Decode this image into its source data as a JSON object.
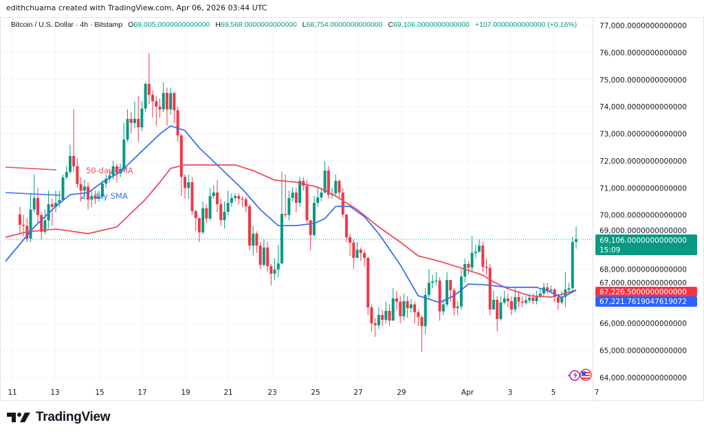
{
  "header": {
    "credit": "edithchuama created with TradingView.com, Apr 06, 2026 03:44 UTC"
  },
  "legend": {
    "symbol": "Bitcoin / U.S. Dollar · 4h · Bitstamp",
    "open": "69,005.0000000000000",
    "high": "69,568.0000000000000",
    "low": "68,754.0000000000000",
    "close": "69,106.0000000000000",
    "change": "+107.0000000000000 (+0.16%)",
    "o_label": "O",
    "h_label": "H",
    "l_label": "L",
    "c_label": "C"
  },
  "price_labels": {
    "last": "69,106.0000000000000",
    "countdown": "15:09",
    "sma50": "67,226.5000000000000",
    "sma21": "67,221.7619047619072"
  },
  "logo": {
    "text": "TradingView"
  },
  "colors": {
    "up": "#089981",
    "down": "#f23645",
    "sma50": "#ef4a5b",
    "sma21": "#3b6ef0",
    "grid": "#f0f3fa"
  },
  "chart_data": {
    "type": "candlestick",
    "interval": "4h",
    "ylim": [
      64000,
      77000
    ],
    "grid": true,
    "y_ticks": [
      "77,000.0000000000000",
      "76,000.0000000000000",
      "75,000.0000000000000",
      "74,000.0000000000000",
      "73,000.0000000000000",
      "72,000.0000000000000",
      "71,000.0000000000000",
      "70,000.0000000000000",
      "69,000.0000000000000",
      "68,000.0000000000000",
      "67,000.0000000000000",
      "66,000.0000000000000",
      "65,000.0000000000000",
      "64,000.0000000000000"
    ],
    "y_tick_values": [
      77000,
      76000,
      75000,
      74000,
      73000,
      72000,
      71000,
      70000,
      69000,
      68000,
      67000,
      66000,
      65000,
      64000
    ],
    "x_ticks": [
      "11",
      "13",
      "15",
      "17",
      "19",
      "21",
      "23",
      "25",
      "27",
      "29",
      "Apr",
      "3",
      "5",
      "7"
    ],
    "candles": [
      [
        70020,
        70300,
        69300,
        69640
      ],
      [
        69640,
        70000,
        69200,
        69600
      ],
      [
        69600,
        69900,
        69000,
        69130
      ],
      [
        69130,
        70800,
        69000,
        70200
      ],
      [
        70200,
        71500,
        70100,
        70630
      ],
      [
        70630,
        71000,
        69700,
        70000
      ],
      [
        70000,
        70100,
        69100,
        69380
      ],
      [
        69380,
        70200,
        69300,
        69800
      ],
      [
        69800,
        70900,
        69500,
        70400
      ],
      [
        70400,
        70600,
        69600,
        70300
      ],
      [
        70300,
        70900,
        70100,
        70450
      ],
      [
        70450,
        70900,
        70300,
        70550
      ],
      [
        70550,
        71500,
        70500,
        71390
      ],
      [
        71390,
        71800,
        71300,
        71590
      ],
      [
        71590,
        72600,
        71500,
        72180
      ],
      [
        72180,
        73900,
        71600,
        71800
      ],
      [
        71800,
        72100,
        71000,
        71140
      ],
      [
        71140,
        71400,
        70500,
        70900
      ],
      [
        70900,
        71300,
        70600,
        71050
      ],
      [
        71050,
        71200,
        70200,
        70570
      ],
      [
        70570,
        70900,
        70300,
        70700
      ],
      [
        70700,
        70900,
        70400,
        70600
      ],
      [
        70600,
        70900,
        70500,
        70680
      ],
      [
        70680,
        71300,
        70600,
        71160
      ],
      [
        71160,
        71500,
        71000,
        71340
      ],
      [
        71340,
        71700,
        71200,
        71460
      ],
      [
        71460,
        72000,
        71300,
        71800
      ],
      [
        71800,
        71900,
        71200,
        71550
      ],
      [
        71550,
        71900,
        71400,
        71700
      ],
      [
        71700,
        73400,
        71600,
        72785
      ],
      [
        72785,
        73900,
        72700,
        73550
      ],
      [
        73550,
        73800,
        73000,
        73400
      ],
      [
        73400,
        74200,
        73200,
        73550
      ],
      [
        73550,
        74400,
        72700,
        73240
      ],
      [
        73240,
        74200,
        73100,
        73930
      ],
      [
        73930,
        74900,
        73800,
        74840
      ],
      [
        74840,
        75990,
        74100,
        74440
      ],
      [
        74440,
        74600,
        73600,
        74200
      ],
      [
        74200,
        74400,
        73300,
        74000
      ],
      [
        74000,
        74300,
        73600,
        73900
      ],
      [
        73900,
        74900,
        73800,
        74510
      ],
      [
        74510,
        74700,
        73300,
        73900
      ],
      [
        73900,
        74700,
        73700,
        74500
      ],
      [
        74500,
        74550,
        73400,
        73870
      ],
      [
        73870,
        74000,
        72700,
        72940
      ],
      [
        72940,
        73000,
        70700,
        71410
      ],
      [
        71410,
        71500,
        70600,
        71000
      ],
      [
        71000,
        71500,
        70600,
        71210
      ],
      [
        71210,
        71400,
        70000,
        70145
      ],
      [
        70145,
        70200,
        69400,
        69890
      ],
      [
        69890,
        69900,
        69000,
        69360
      ],
      [
        69360,
        70500,
        69300,
        70250
      ],
      [
        70250,
        70400,
        69700,
        69870
      ],
      [
        69870,
        71000,
        69800,
        70700
      ],
      [
        70700,
        71100,
        70600,
        70830
      ],
      [
        70830,
        71300,
        70100,
        70400
      ],
      [
        70400,
        70600,
        69600,
        69810
      ],
      [
        69810,
        70500,
        69500,
        70120
      ],
      [
        70120,
        70900,
        70000,
        70450
      ],
      [
        70450,
        70800,
        70300,
        70630
      ],
      [
        70630,
        70800,
        70500,
        70700
      ],
      [
        70700,
        70800,
        70400,
        70600
      ],
      [
        70600,
        70700,
        70300,
        70580
      ],
      [
        70580,
        70650,
        70100,
        70320
      ],
      [
        70320,
        70400,
        68700,
        68870
      ],
      [
        68870,
        69600,
        68500,
        69310
      ],
      [
        69310,
        69400,
        68600,
        68870
      ],
      [
        68870,
        69000,
        68000,
        68160
      ],
      [
        68160,
        69100,
        68100,
        68800
      ],
      [
        68800,
        69000,
        67900,
        68110
      ],
      [
        68110,
        68200,
        67400,
        67830
      ],
      [
        67830,
        68400,
        67600,
        67990
      ],
      [
        67990,
        68900,
        67700,
        68210
      ],
      [
        68210,
        71600,
        68200,
        70040
      ],
      [
        70040,
        71500,
        69900,
        70000
      ],
      [
        70000,
        70900,
        69800,
        70630
      ],
      [
        70630,
        71000,
        70500,
        70830
      ],
      [
        70830,
        71000,
        70100,
        70450
      ],
      [
        70450,
        71400,
        70300,
        71260
      ],
      [
        71260,
        71400,
        70900,
        71080
      ],
      [
        71080,
        71300,
        69700,
        69810
      ],
      [
        69810,
        69800,
        68700,
        69260
      ],
      [
        69260,
        70700,
        69200,
        70450
      ],
      [
        70450,
        71000,
        70300,
        70650
      ],
      [
        70650,
        71000,
        70500,
        70830
      ],
      [
        70830,
        71990,
        70800,
        71640
      ],
      [
        71640,
        71800,
        70600,
        70750
      ],
      [
        70750,
        71000,
        70600,
        70800
      ],
      [
        70800,
        71500,
        70700,
        71260
      ],
      [
        71260,
        71300,
        70600,
        70830
      ],
      [
        70830,
        71000,
        69900,
        70020
      ],
      [
        70020,
        70000,
        69000,
        69180
      ],
      [
        69180,
        69300,
        68500,
        68980
      ],
      [
        68980,
        69100,
        68000,
        68420
      ],
      [
        68420,
        69000,
        68400,
        68720
      ],
      [
        68720,
        68800,
        68300,
        68600
      ],
      [
        68600,
        68700,
        68100,
        68420
      ],
      [
        68420,
        68400,
        66300,
        66590
      ],
      [
        66590,
        66700,
        65700,
        66000
      ],
      [
        66000,
        66200,
        65500,
        65930
      ],
      [
        65930,
        66600,
        65800,
        66310
      ],
      [
        66310,
        66500,
        65900,
        66130
      ],
      [
        66130,
        66800,
        66000,
        66460
      ],
      [
        66460,
        66700,
        65900,
        66100
      ],
      [
        66100,
        67300,
        66100,
        66920
      ],
      [
        66920,
        67200,
        66500,
        66800
      ],
      [
        66800,
        67000,
        66000,
        66260
      ],
      [
        66260,
        67100,
        66100,
        66820
      ],
      [
        66820,
        67000,
        66200,
        66560
      ],
      [
        66560,
        66900,
        66400,
        66700
      ],
      [
        66700,
        66800,
        66000,
        66410
      ],
      [
        66410,
        66500,
        65900,
        66230
      ],
      [
        66230,
        66300,
        64940,
        65900
      ],
      [
        65900,
        67300,
        65600,
        67050
      ],
      [
        67050,
        68000,
        66900,
        67500
      ],
      [
        67500,
        67800,
        67300,
        67550
      ],
      [
        67550,
        67900,
        67400,
        67580
      ],
      [
        67580,
        67700,
        66100,
        66440
      ],
      [
        66440,
        66900,
        66300,
        66700
      ],
      [
        66700,
        67900,
        66600,
        67600
      ],
      [
        67600,
        67600,
        66800,
        67220
      ],
      [
        67220,
        67300,
        66300,
        66560
      ],
      [
        66560,
        66800,
        66300,
        66620
      ],
      [
        66620,
        68000,
        66500,
        67730
      ],
      [
        67730,
        68400,
        67500,
        68190
      ],
      [
        68190,
        68300,
        67800,
        68060
      ],
      [
        68060,
        69230,
        67900,
        68600
      ],
      [
        68600,
        68900,
        68400,
        68650
      ],
      [
        68650,
        69100,
        68600,
        68870
      ],
      [
        68870,
        69000,
        67900,
        68090
      ],
      [
        68090,
        68400,
        67800,
        68050
      ],
      [
        68050,
        68200,
        66300,
        66510
      ],
      [
        66510,
        67200,
        66500,
        66870
      ],
      [
        66870,
        67000,
        65700,
        66160
      ],
      [
        66160,
        67000,
        66100,
        66770
      ],
      [
        66770,
        67200,
        66700,
        66920
      ],
      [
        66920,
        67100,
        66600,
        66820
      ],
      [
        66820,
        67000,
        66300,
        66510
      ],
      [
        66510,
        67300,
        66400,
        66970
      ],
      [
        66970,
        67200,
        66600,
        66800
      ],
      [
        66800,
        67000,
        66600,
        66760
      ],
      [
        66760,
        67000,
        66700,
        66850
      ],
      [
        66850,
        67100,
        66750,
        66950
      ],
      [
        66950,
        67100,
        66700,
        66820
      ],
      [
        66820,
        67200,
        66700,
        66990
      ],
      [
        66990,
        67300,
        66900,
        67100
      ],
      [
        67100,
        67500,
        67000,
        67330
      ],
      [
        67330,
        67500,
        67100,
        67200
      ],
      [
        67200,
        67400,
        67100,
        67250
      ],
      [
        67250,
        67300,
        66800,
        66970
      ],
      [
        66970,
        67100,
        66500,
        66770
      ],
      [
        66770,
        67200,
        66700,
        66980
      ],
      [
        66980,
        67900,
        66600,
        67250
      ],
      [
        67250,
        67500,
        67100,
        67300
      ],
      [
        67300,
        69200,
        67200,
        69005
      ],
      [
        69005,
        69568,
        68754,
        69106
      ]
    ],
    "series": [
      {
        "name": "50-day SMA",
        "points": [
          [
            -4,
            69180
          ],
          [
            2,
            69380
          ],
          [
            10,
            69480
          ],
          [
            14,
            69410
          ],
          [
            19,
            69310
          ],
          [
            27,
            69560
          ],
          [
            31,
            70070
          ],
          [
            35,
            70580
          ],
          [
            39,
            71210
          ],
          [
            42,
            71720
          ],
          [
            46,
            71850
          ],
          [
            52,
            71850
          ],
          [
            60,
            71850
          ],
          [
            65,
            71640
          ],
          [
            71,
            71290
          ],
          [
            77,
            71210
          ],
          [
            83,
            71030
          ],
          [
            88,
            70700
          ],
          [
            94,
            70200
          ],
          [
            100,
            69560
          ],
          [
            106,
            69000
          ],
          [
            111,
            68490
          ],
          [
            117,
            68290
          ],
          [
            123,
            68040
          ],
          [
            129,
            67780
          ],
          [
            132,
            67530
          ],
          [
            136,
            67280
          ],
          [
            142,
            67020
          ],
          [
            148,
            66970
          ],
          [
            151,
            67070
          ],
          [
            155,
            67226.5
          ]
        ]
      },
      {
        "name": "21-day SMA",
        "points": [
          [
            -4,
            68290
          ],
          [
            4,
            69560
          ],
          [
            10,
            70320
          ],
          [
            14,
            70750
          ],
          [
            19,
            70830
          ],
          [
            23,
            71210
          ],
          [
            28,
            71590
          ],
          [
            33,
            72230
          ],
          [
            39,
            72990
          ],
          [
            42,
            73290
          ],
          [
            46,
            73120
          ],
          [
            50,
            72480
          ],
          [
            56,
            71720
          ],
          [
            62,
            70960
          ],
          [
            67,
            70200
          ],
          [
            72,
            69610
          ],
          [
            77,
            69610
          ],
          [
            82,
            69690
          ],
          [
            85,
            69870
          ],
          [
            88,
            70320
          ],
          [
            92,
            70320
          ],
          [
            96,
            69940
          ],
          [
            100,
            69310
          ],
          [
            106,
            68160
          ],
          [
            111,
            67020
          ],
          [
            117,
            66770
          ],
          [
            121,
            67020
          ],
          [
            125,
            67450
          ],
          [
            129,
            67430
          ],
          [
            136,
            67330
          ],
          [
            144,
            67330
          ],
          [
            148,
            67150
          ],
          [
            151,
            66950
          ],
          [
            155,
            67221.76
          ]
        ]
      }
    ]
  }
}
